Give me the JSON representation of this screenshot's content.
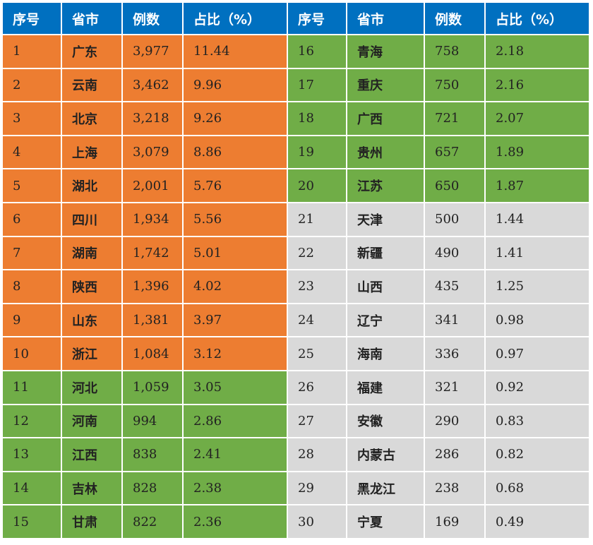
{
  "table": {
    "headers": [
      "序号",
      "省市",
      "例数",
      "占比（%）",
      "序号",
      "省市",
      "例数",
      "占比（%）"
    ],
    "colors": {
      "header": "#0070C0",
      "orange": "#ED7D31",
      "green": "#70AD47",
      "gray": "#D9D9D9"
    },
    "left_rows": [
      {
        "idx": "1",
        "prov": "广东",
        "count": "3,977",
        "pct": "11.44",
        "tier": "orange"
      },
      {
        "idx": "2",
        "prov": "云南",
        "count": "3,462",
        "pct": "9.96",
        "tier": "orange"
      },
      {
        "idx": "3",
        "prov": "北京",
        "count": "3,218",
        "pct": "9.26",
        "tier": "orange"
      },
      {
        "idx": "4",
        "prov": "上海",
        "count": "3,079",
        "pct": "8.86",
        "tier": "orange"
      },
      {
        "idx": "5",
        "prov": "湖北",
        "count": "2,001",
        "pct": "5.76",
        "tier": "orange"
      },
      {
        "idx": "6",
        "prov": "四川",
        "count": "1,934",
        "pct": "5.56",
        "tier": "orange"
      },
      {
        "idx": "7",
        "prov": "湖南",
        "count": "1,742",
        "pct": "5.01",
        "tier": "orange"
      },
      {
        "idx": "8",
        "prov": "陕西",
        "count": "1,396",
        "pct": "4.02",
        "tier": "orange"
      },
      {
        "idx": "9",
        "prov": "山东",
        "count": "1,381",
        "pct": "3.97",
        "tier": "orange"
      },
      {
        "idx": "10",
        "prov": "浙江",
        "count": "1,084",
        "pct": "3.12",
        "tier": "orange"
      },
      {
        "idx": "11",
        "prov": "河北",
        "count": "1,059",
        "pct": "3.05",
        "tier": "green"
      },
      {
        "idx": "12",
        "prov": "河南",
        "count": "994",
        "pct": "2.86",
        "tier": "green"
      },
      {
        "idx": "13",
        "prov": "江西",
        "count": "838",
        "pct": "2.41",
        "tier": "green"
      },
      {
        "idx": "14",
        "prov": "吉林",
        "count": "828",
        "pct": "2.38",
        "tier": "green"
      },
      {
        "idx": "15",
        "prov": "甘肃",
        "count": "822",
        "pct": "2.36",
        "tier": "green"
      }
    ],
    "right_rows": [
      {
        "idx": "16",
        "prov": "青海",
        "count": "758",
        "pct": "2.18",
        "tier": "green"
      },
      {
        "idx": "17",
        "prov": "重庆",
        "count": "750",
        "pct": "2.16",
        "tier": "green"
      },
      {
        "idx": "18",
        "prov": "广西",
        "count": "721",
        "pct": "2.07",
        "tier": "green"
      },
      {
        "idx": "19",
        "prov": "贵州",
        "count": "657",
        "pct": "1.89",
        "tier": "green"
      },
      {
        "idx": "20",
        "prov": "江苏",
        "count": "650",
        "pct": "1.87",
        "tier": "green"
      },
      {
        "idx": "21",
        "prov": "天津",
        "count": "500",
        "pct": "1.44",
        "tier": "gray"
      },
      {
        "idx": "22",
        "prov": "新疆",
        "count": "490",
        "pct": "1.41",
        "tier": "gray"
      },
      {
        "idx": "23",
        "prov": "山西",
        "count": "435",
        "pct": "1.25",
        "tier": "gray"
      },
      {
        "idx": "24",
        "prov": "辽宁",
        "count": "341",
        "pct": "0.98",
        "tier": "gray"
      },
      {
        "idx": "25",
        "prov": "海南",
        "count": "336",
        "pct": "0.97",
        "tier": "gray"
      },
      {
        "idx": "26",
        "prov": "福建",
        "count": "321",
        "pct": "0.92",
        "tier": "gray"
      },
      {
        "idx": "27",
        "prov": "安徽",
        "count": "290",
        "pct": "0.83",
        "tier": "gray"
      },
      {
        "idx": "28",
        "prov": "内蒙古",
        "count": "286",
        "pct": "0.82",
        "tier": "gray"
      },
      {
        "idx": "29",
        "prov": "黑龙江",
        "count": "238",
        "pct": "0.68",
        "tier": "gray"
      },
      {
        "idx": "30",
        "prov": "宁夏",
        "count": "169",
        "pct": "0.49",
        "tier": "gray"
      }
    ]
  }
}
